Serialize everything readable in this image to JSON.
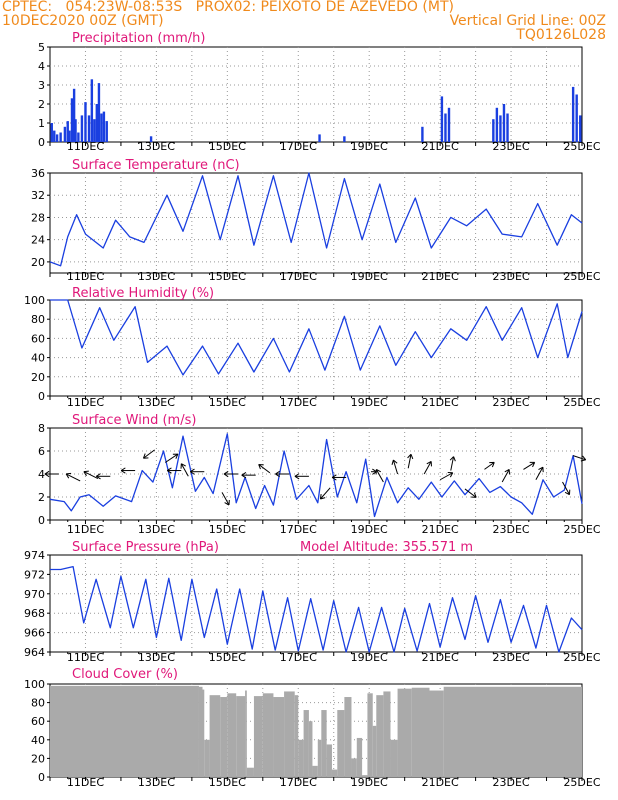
{
  "header": {
    "line1_left": "CPTEC:   054:23W-08:53S   PROX02: PEIXOTO DE AZEVEDO (MT)",
    "line2_left": "10DEC2020 00Z (GMT)",
    "line2_right": "Vertical Grid Line: 00Z",
    "line3_right": "TQ0126L028"
  },
  "colors": {
    "header": "#f08a1c",
    "title": "#e0187a",
    "line": "#1a3fe0",
    "bar": "#1a3fe0",
    "cloud": "#aaaaaa",
    "grid": "#999999"
  },
  "chart_data": [
    {
      "type": "bar",
      "title": "Precipitation (mm/h)",
      "ylim": [
        0,
        5
      ],
      "yticks": [
        0,
        1,
        2,
        3,
        4,
        5
      ],
      "xlim": [
        0,
        15
      ],
      "xticks": [
        "11DEC",
        "13DEC",
        "15DEC",
        "17DEC",
        "19DEC",
        "21DEC",
        "23DEC",
        "25DEC"
      ],
      "bars": [
        [
          0.05,
          1.0
        ],
        [
          0.12,
          0.6
        ],
        [
          0.2,
          0.4
        ],
        [
          0.3,
          0.5
        ],
        [
          0.42,
          0.8
        ],
        [
          0.5,
          1.1
        ],
        [
          0.55,
          0.6
        ],
        [
          0.62,
          2.3
        ],
        [
          0.68,
          2.8
        ],
        [
          0.72,
          1.2
        ],
        [
          0.8,
          0.5
        ],
        [
          0.9,
          1.4
        ],
        [
          1.0,
          2.1
        ],
        [
          1.1,
          1.4
        ],
        [
          1.18,
          3.3
        ],
        [
          1.25,
          1.2
        ],
        [
          1.32,
          2.0
        ],
        [
          1.38,
          3.1
        ],
        [
          1.45,
          1.5
        ],
        [
          1.52,
          1.6
        ],
        [
          1.6,
          1.1
        ],
        [
          2.85,
          0.3
        ],
        [
          7.6,
          0.4
        ],
        [
          8.3,
          0.3
        ],
        [
          10.5,
          0.8
        ],
        [
          11.05,
          2.4
        ],
        [
          11.15,
          1.5
        ],
        [
          11.25,
          1.8
        ],
        [
          12.5,
          1.2
        ],
        [
          12.6,
          1.8
        ],
        [
          12.7,
          1.4
        ],
        [
          12.8,
          2.0
        ],
        [
          12.9,
          1.5
        ],
        [
          14.75,
          2.9
        ],
        [
          14.85,
          2.5
        ],
        [
          14.95,
          1.4
        ]
      ]
    },
    {
      "type": "line",
      "title": "Surface Temperature (nC)",
      "ylim": [
        18,
        36
      ],
      "yticks": [
        20,
        24,
        28,
        32,
        36
      ],
      "xlim": [
        0,
        15
      ],
      "xticks": [
        "11DEC",
        "13DEC",
        "15DEC",
        "17DEC",
        "19DEC",
        "21DEC",
        "23DEC",
        "25DEC"
      ],
      "x": [
        0,
        0.3,
        0.5,
        0.75,
        1,
        1.5,
        1.85,
        2.25,
        2.65,
        3.3,
        3.75,
        4.3,
        4.8,
        5.3,
        5.75,
        6.3,
        6.8,
        7.3,
        7.8,
        8.3,
        8.8,
        9.3,
        9.75,
        10.3,
        10.75,
        11.3,
        11.75,
        12.3,
        12.75,
        13.3,
        13.75,
        14.3,
        14.7,
        15
      ],
      "y": [
        20,
        19.3,
        24.5,
        28.5,
        25,
        22.5,
        27.5,
        24.5,
        23.5,
        32,
        25.5,
        35.5,
        24,
        35.5,
        23,
        35.5,
        23.5,
        36,
        22.5,
        35,
        24,
        34,
        23.5,
        31.5,
        22.5,
        28,
        26.5,
        29.5,
        25,
        24.5,
        30.5,
        23,
        28.5,
        27
      ]
    },
    {
      "type": "line",
      "title": "Relative Humidity (%)",
      "ylim": [
        0,
        100
      ],
      "yticks": [
        0,
        20,
        40,
        60,
        80,
        100
      ],
      "xlim": [
        0,
        15
      ],
      "xticks": [
        "11DEC",
        "13DEC",
        "15DEC",
        "17DEC",
        "19DEC",
        "21DEC",
        "23DEC",
        "25DEC"
      ],
      "x": [
        0,
        0.5,
        0.9,
        1.4,
        1.8,
        2.4,
        2.75,
        3.3,
        3.75,
        4.3,
        4.75,
        5.3,
        5.75,
        6.3,
        6.75,
        7.3,
        7.75,
        8.3,
        8.75,
        9.3,
        9.75,
        10.3,
        10.75,
        11.3,
        11.75,
        12.3,
        12.75,
        13.3,
        13.75,
        14.3,
        14.6,
        15
      ],
      "y": [
        100,
        100,
        50,
        92,
        58,
        93,
        35,
        52,
        22,
        52,
        23,
        55,
        25,
        60,
        25,
        70,
        27,
        83,
        27,
        73,
        32,
        67,
        40,
        70,
        58,
        93,
        58,
        92,
        40,
        96,
        40,
        88
      ]
    },
    {
      "type": "line",
      "title": "Surface Wind (m/s)",
      "ylim": [
        0,
        8
      ],
      "yticks": [
        0,
        2,
        4,
        6,
        8
      ],
      "xlim": [
        0,
        15
      ],
      "xticks": [
        "11DEC",
        "13DEC",
        "15DEC",
        "17DEC",
        "19DEC",
        "21DEC",
        "23DEC",
        "25DEC"
      ],
      "x": [
        0,
        0.4,
        0.6,
        0.85,
        1.1,
        1.5,
        1.85,
        2.3,
        2.6,
        2.9,
        3.2,
        3.45,
        3.75,
        4.1,
        4.35,
        4.6,
        5.0,
        5.25,
        5.5,
        5.8,
        6.05,
        6.3,
        6.6,
        6.95,
        7.3,
        7.55,
        7.8,
        8.1,
        8.35,
        8.65,
        8.9,
        9.15,
        9.5,
        9.8,
        10.1,
        10.4,
        10.75,
        11.05,
        11.4,
        11.7,
        12.1,
        12.4,
        12.7,
        13.0,
        13.3,
        13.6,
        13.9,
        14.2,
        14.5,
        14.75,
        15
      ],
      "y": [
        1.8,
        1.6,
        0.8,
        2.0,
        2.2,
        1.2,
        2.1,
        1.6,
        4.3,
        3.3,
        6.0,
        2.8,
        7.3,
        2.5,
        3.7,
        2.3,
        7.5,
        1.5,
        3.7,
        1.0,
        3.0,
        1.3,
        6.0,
        1.8,
        3.0,
        1.5,
        7.0,
        2.0,
        4.2,
        1.5,
        5.3,
        0.3,
        3.7,
        1.5,
        2.8,
        1.8,
        3.3,
        2.0,
        3.4,
        2.2,
        3.6,
        2.4,
        2.9,
        2.0,
        1.5,
        0.5,
        3.5,
        2.0,
        2.6,
        5.6,
        1.4
      ],
      "vectors": [
        [
          0.25,
          4.0,
          -1,
          0
        ],
        [
          0.85,
          3.4,
          -1,
          -0.5
        ],
        [
          1.35,
          3.6,
          -1,
          -0.5
        ],
        [
          1.7,
          3.8,
          -1,
          0
        ],
        [
          2.4,
          4.3,
          -1,
          0
        ],
        [
          2.95,
          6.1,
          -0.8,
          0.6
        ],
        [
          3.25,
          5.0,
          0.9,
          -0.6
        ],
        [
          3.7,
          4.3,
          -1,
          0
        ],
        [
          3.9,
          3.8,
          -0.5,
          -0.9
        ],
        [
          4.35,
          4.2,
          -1,
          0
        ],
        [
          4.85,
          2.4,
          0.5,
          0.9
        ],
        [
          5.3,
          4.0,
          -1,
          0
        ],
        [
          5.8,
          3.9,
          -1,
          0
        ],
        [
          6.2,
          4.1,
          -0.8,
          -0.6
        ],
        [
          6.75,
          4.0,
          -1,
          0
        ],
        [
          7.3,
          3.8,
          -1,
          0
        ],
        [
          7.9,
          2.8,
          -0.7,
          0.8
        ],
        [
          8.35,
          3.7,
          -1,
          0
        ],
        [
          9.05,
          4.2,
          0.4,
          0
        ],
        [
          9.4,
          3.3,
          -0.5,
          -0.9
        ],
        [
          9.8,
          4.0,
          -0.3,
          -1
        ],
        [
          10.1,
          4.5,
          0.2,
          -1
        ],
        [
          10.55,
          4.0,
          0.5,
          -0.9
        ],
        [
          11.0,
          3.5,
          0.9,
          -0.5
        ],
        [
          11.3,
          4.3,
          0.2,
          -1
        ],
        [
          11.7,
          2.7,
          0.8,
          0.6
        ],
        [
          12.25,
          4.4,
          0.7,
          -0.5
        ],
        [
          12.75,
          3.3,
          0.5,
          -0.9
        ],
        [
          13.35,
          4.4,
          0.8,
          -0.5
        ],
        [
          13.7,
          3.5,
          0.5,
          -0.9
        ],
        [
          14.45,
          3.3,
          0.5,
          0.9
        ],
        [
          14.75,
          5.6,
          0.9,
          0.3
        ]
      ]
    },
    {
      "type": "line",
      "title": "Surface Pressure (hPa)",
      "annotation": "Model Altitude: 355.571  m",
      "ylim": [
        964,
        974
      ],
      "yticks": [
        964,
        966,
        968,
        970,
        972,
        974
      ],
      "xlim": [
        0,
        15
      ],
      "xticks": [
        "11DEC",
        "13DEC",
        "15DEC",
        "17DEC",
        "19DEC",
        "21DEC",
        "23DEC",
        "25DEC"
      ],
      "x": [
        0,
        0.3,
        0.65,
        0.95,
        1.3,
        1.7,
        2.0,
        2.35,
        2.7,
        3.0,
        3.35,
        3.7,
        4.0,
        4.35,
        4.7,
        5.0,
        5.35,
        5.7,
        6.0,
        6.35,
        6.7,
        7.0,
        7.35,
        7.7,
        8.0,
        8.35,
        8.7,
        9.0,
        9.35,
        9.7,
        10.0,
        10.35,
        10.7,
        11.0,
        11.35,
        11.7,
        12.0,
        12.35,
        12.7,
        13.0,
        13.35,
        13.7,
        14.0,
        14.35,
        14.7,
        15.0
      ],
      "y": [
        972.5,
        972.5,
        972.8,
        967,
        971.5,
        966.5,
        971.8,
        966.5,
        971.5,
        965.5,
        971.6,
        965.2,
        971.5,
        965.5,
        970.5,
        964.8,
        970.5,
        964.3,
        970.3,
        964.2,
        969.6,
        964.1,
        969.5,
        964.2,
        969.3,
        964.0,
        968.6,
        964.0,
        968.6,
        964.0,
        968.5,
        964.1,
        969.0,
        964.5,
        969.6,
        965.3,
        969.8,
        965.0,
        969.4,
        965.0,
        968.8,
        964.4,
        968.8,
        964.0,
        967.5,
        966.3
      ]
    },
    {
      "type": "bar",
      "title": "Cloud Cover (%)",
      "ylim": [
        0,
        100
      ],
      "yticks": [
        0,
        20,
        40,
        60,
        80,
        100
      ],
      "xlim": [
        0,
        15
      ],
      "xticks": [
        "11DEC",
        "13DEC",
        "15DEC",
        "17DEC",
        "19DEC",
        "21DEC",
        "23DEC",
        "25DEC"
      ],
      "series": [
        [
          0,
          98
        ],
        [
          4.2,
          97
        ],
        [
          4.3,
          94
        ],
        [
          4.35,
          40
        ],
        [
          4.5,
          88
        ],
        [
          4.8,
          86
        ],
        [
          5.0,
          90
        ],
        [
          5.25,
          87
        ],
        [
          5.5,
          93
        ],
        [
          5.55,
          10
        ],
        [
          5.75,
          87
        ],
        [
          6.0,
          90
        ],
        [
          6.3,
          86
        ],
        [
          6.6,
          92
        ],
        [
          6.9,
          88
        ],
        [
          7.0,
          40
        ],
        [
          7.15,
          72
        ],
        [
          7.3,
          60
        ],
        [
          7.4,
          12
        ],
        [
          7.55,
          40
        ],
        [
          7.65,
          72
        ],
        [
          7.8,
          35
        ],
        [
          7.95,
          8
        ],
        [
          8.1,
          72
        ],
        [
          8.3,
          86
        ],
        [
          8.5,
          20
        ],
        [
          8.65,
          42
        ],
        [
          8.8,
          2
        ],
        [
          8.95,
          90
        ],
        [
          9.1,
          55
        ],
        [
          9.2,
          88
        ],
        [
          9.4,
          92
        ],
        [
          9.6,
          40
        ],
        [
          9.8,
          95
        ],
        [
          10.2,
          96
        ],
        [
          10.7,
          93
        ],
        [
          11.1,
          97
        ],
        [
          15,
          98
        ]
      ]
    }
  ]
}
